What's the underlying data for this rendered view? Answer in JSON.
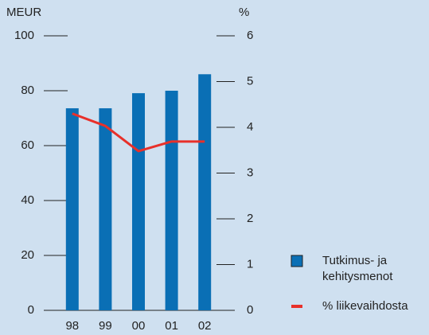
{
  "chart_data": {
    "type": "bar",
    "y_label": "MEUR",
    "y2_label": "%",
    "categories": [
      "98",
      "99",
      "00",
      "01",
      "02"
    ],
    "series": [
      {
        "name": "Tutkimus- ja kehitysmenot",
        "type": "bar",
        "color": "#0a6fb5",
        "values": [
          73.6,
          73.6,
          79.1,
          80,
          86
        ]
      },
      {
        "name": "% liikevaihdosta",
        "type": "line",
        "axis": "y2",
        "color": "#e8302a",
        "values": [
          4.3,
          4.03,
          3.48,
          3.69,
          3.69
        ]
      }
    ],
    "ylim": [
      0,
      100
    ],
    "yticks": [
      0,
      20,
      40,
      60,
      80,
      100
    ],
    "y2lim": [
      0,
      6
    ],
    "y2ticks": [
      0,
      1,
      2,
      3,
      4,
      5,
      6
    ],
    "legend": "right"
  }
}
